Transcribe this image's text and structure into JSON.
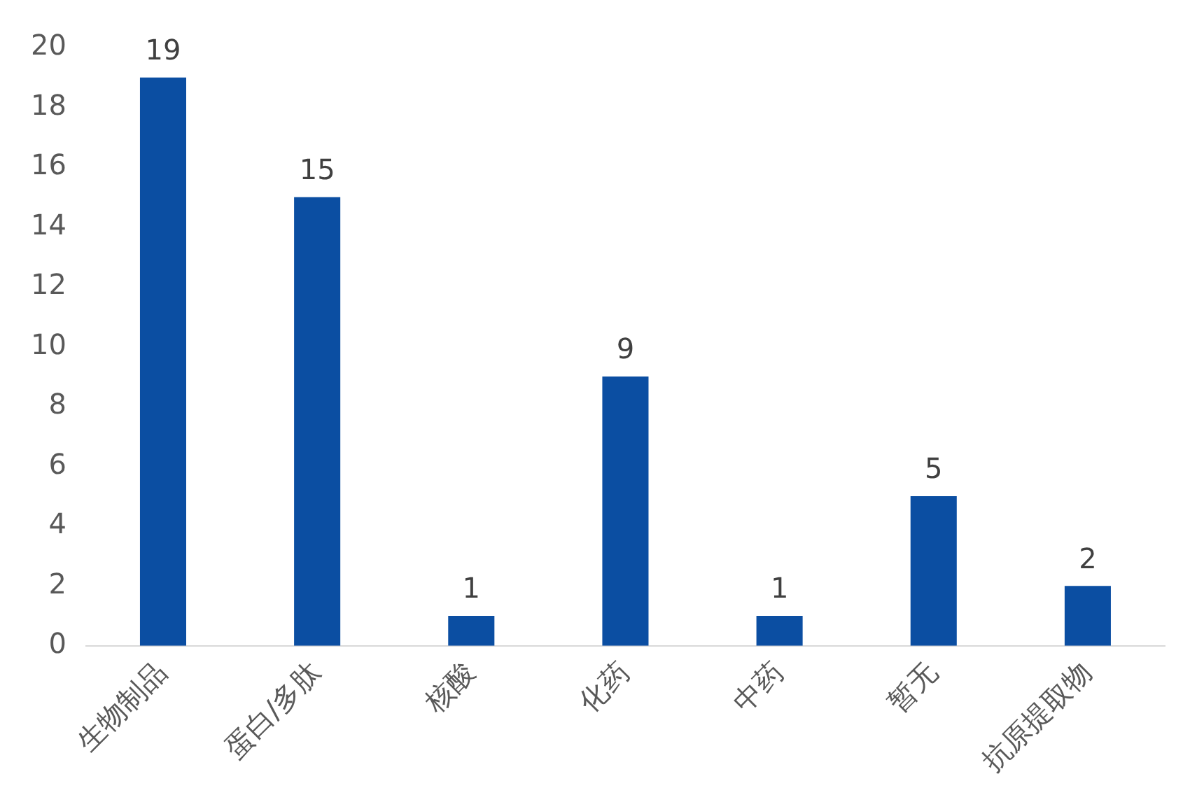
{
  "chart_data": {
    "type": "bar",
    "categories": [
      "生物制品",
      "蛋白/多肽",
      "核酸",
      "化药",
      "中药",
      "暂无",
      "抗原提取物"
    ],
    "values": [
      19,
      15,
      1,
      9,
      1,
      5,
      2
    ],
    "color": "#0b4ea2",
    "ylim": [
      0,
      20
    ],
    "yticks": [
      0,
      2,
      4,
      6,
      8,
      10,
      12,
      14,
      16,
      18,
      20
    ],
    "grid": false,
    "data_labels": true
  }
}
